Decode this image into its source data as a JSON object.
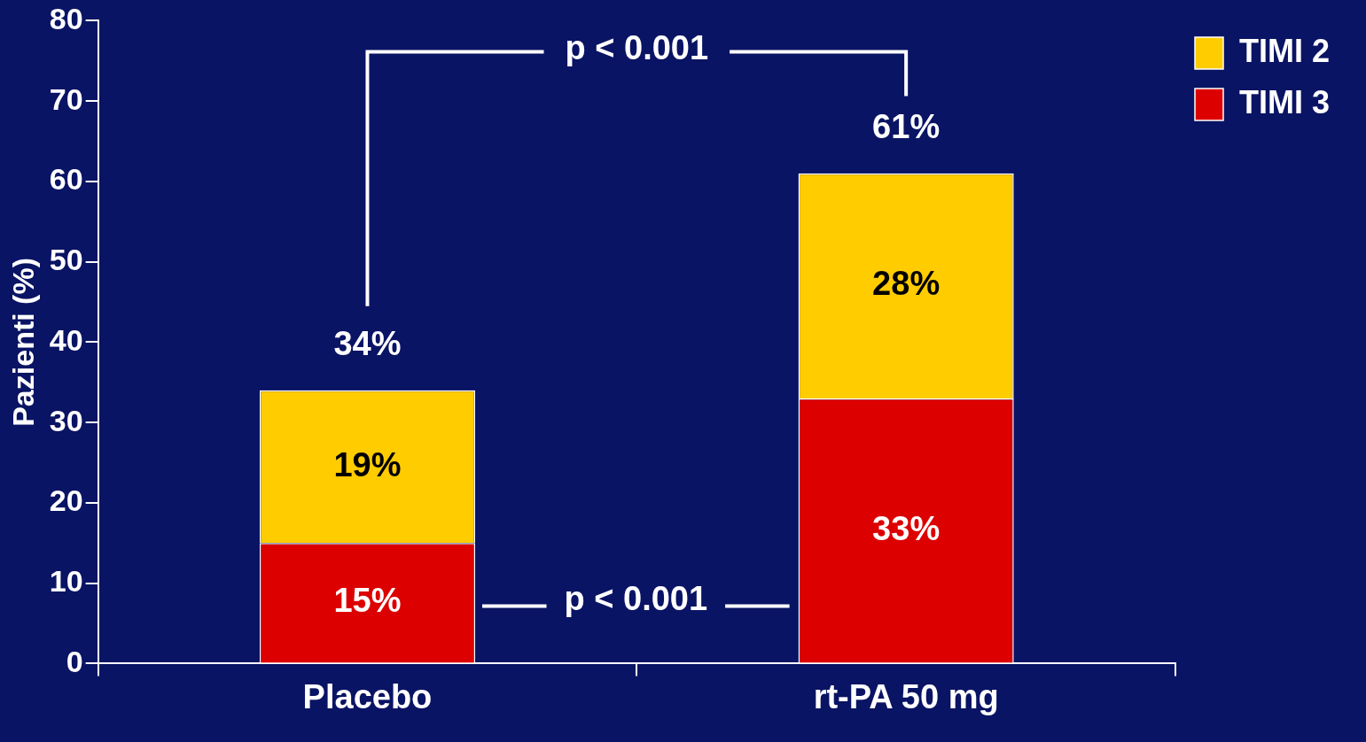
{
  "chart_data": {
    "type": "bar",
    "stacked": true,
    "ylabel": "Pazienti (%)",
    "categories": [
      "Placebo",
      "rt-PA 50 mg"
    ],
    "series": [
      {
        "name": "TIMI 3",
        "color": "#dd0000",
        "values": [
          15,
          33
        ],
        "value_labels": [
          "15%",
          "33%"
        ]
      },
      {
        "name": "TIMI 2",
        "color": "#ffcc00",
        "values": [
          19,
          28
        ],
        "value_labels": [
          "19%",
          "28%"
        ]
      }
    ],
    "totals": [
      "34%",
      "61%"
    ],
    "annotations": [
      "p < 0.001",
      "p < 0.001"
    ],
    "ylim": [
      0,
      80
    ],
    "yticks": [
      0,
      10,
      20,
      30,
      40,
      50,
      60,
      70,
      80
    ],
    "grid": false,
    "legend": "top right"
  }
}
